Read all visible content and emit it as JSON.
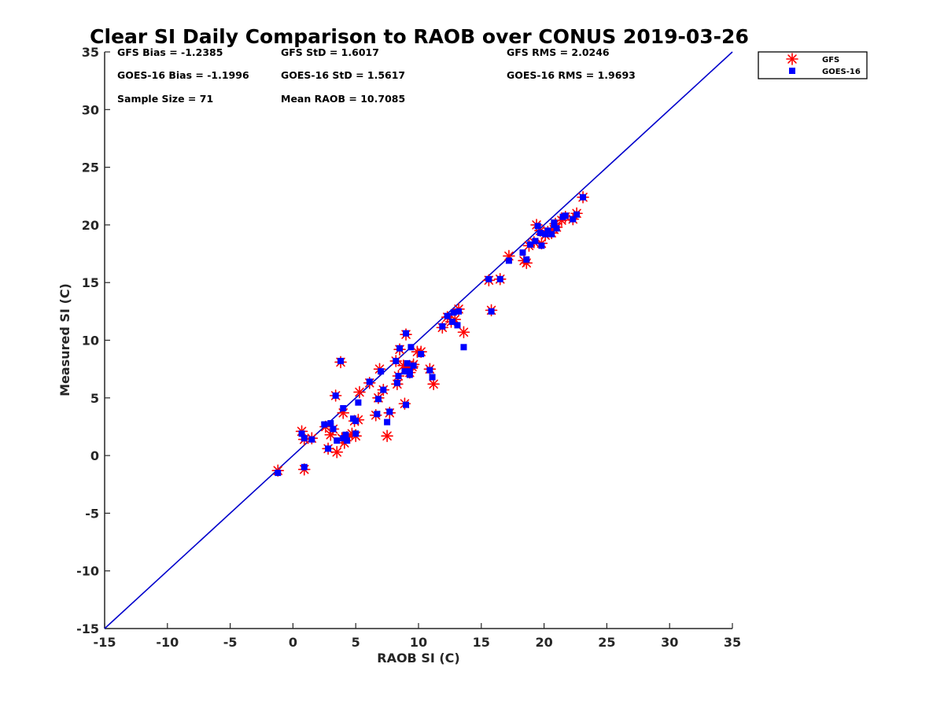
{
  "chart_data": {
    "type": "scatter",
    "title": "Clear SI Daily Comparison to RAOB over CONUS 2019-03-26",
    "xlabel": "RAOB SI (C)",
    "ylabel": "Measured SI (C)",
    "xlim": [
      -15,
      35
    ],
    "ylim": [
      -15,
      35
    ],
    "xticks": [
      -15,
      -10,
      -5,
      0,
      5,
      10,
      15,
      20,
      25,
      30,
      35
    ],
    "yticks": [
      -15,
      -10,
      -5,
      0,
      5,
      10,
      15,
      20,
      25,
      30,
      35
    ],
    "grid": false,
    "legend_position": "outside-top-right",
    "reference_line": {
      "x": [
        -15,
        35
      ],
      "y": [
        -15,
        35
      ],
      "color": "#0000cc"
    },
    "stats": [
      {
        "text": "GFS Bias = -1.2385"
      },
      {
        "text": "GFS StD = 1.6017"
      },
      {
        "text": "GFS RMS = 2.0246"
      },
      {
        "text": "GOES-16 Bias = -1.1996"
      },
      {
        "text": "GOES-16 StD = 1.5617"
      },
      {
        "text": "GOES-16 RMS = 1.9693"
      },
      {
        "text": "Sample Size = 71"
      },
      {
        "text": "Mean RAOB = 10.7085"
      }
    ],
    "series": [
      {
        "name": "GFS",
        "marker": "asterisk",
        "color": "#ff0000",
        "points": [
          [
            -1.2,
            -1.3
          ],
          [
            0.7,
            2.1
          ],
          [
            0.9,
            1.4
          ],
          [
            0.9,
            -1.2
          ],
          [
            1.5,
            1.5
          ],
          [
            2.6,
            2.5
          ],
          [
            2.8,
            0.6
          ],
          [
            3.0,
            1.8
          ],
          [
            3.2,
            2.3
          ],
          [
            3.4,
            5.2
          ],
          [
            3.5,
            0.3
          ],
          [
            3.8,
            8.1
          ],
          [
            3.9,
            1.5
          ],
          [
            4.0,
            3.7
          ],
          [
            4.1,
            1.1
          ],
          [
            4.3,
            1.6
          ],
          [
            4.7,
            1.9
          ],
          [
            4.9,
            3.0
          ],
          [
            5.0,
            1.7
          ],
          [
            5.3,
            5.5
          ],
          [
            6.1,
            6.3
          ],
          [
            6.6,
            3.5
          ],
          [
            6.8,
            5.0
          ],
          [
            6.9,
            7.5
          ],
          [
            7.2,
            5.7
          ],
          [
            7.5,
            1.7
          ],
          [
            7.7,
            3.7
          ],
          [
            8.2,
            8.2
          ],
          [
            8.3,
            6.2
          ],
          [
            8.4,
            6.9
          ],
          [
            8.5,
            9.2
          ],
          [
            8.8,
            7.8
          ],
          [
            8.9,
            4.5
          ],
          [
            9.0,
            10.5
          ],
          [
            9.1,
            7.6
          ],
          [
            9.3,
            7.2
          ],
          [
            9.5,
            7.7
          ],
          [
            9.9,
            9.0
          ],
          [
            10.2,
            9.0
          ],
          [
            10.9,
            7.5
          ],
          [
            11.2,
            6.2
          ],
          [
            11.9,
            11.1
          ],
          [
            12.3,
            12.0
          ],
          [
            12.9,
            11.8
          ],
          [
            13.2,
            12.7
          ],
          [
            13.6,
            10.7
          ],
          [
            15.6,
            15.2
          ],
          [
            15.8,
            12.6
          ],
          [
            16.5,
            15.3
          ],
          [
            17.2,
            17.3
          ],
          [
            18.4,
            16.9
          ],
          [
            18.6,
            16.7
          ],
          [
            18.8,
            18.2
          ],
          [
            19.2,
            18.5
          ],
          [
            19.4,
            20.0
          ],
          [
            19.7,
            19.5
          ],
          [
            19.8,
            18.4
          ],
          [
            20.1,
            19.1
          ],
          [
            20.3,
            19.4
          ],
          [
            20.6,
            19.3
          ],
          [
            20.8,
            19.6
          ],
          [
            21.0,
            19.8
          ],
          [
            21.4,
            20.4
          ],
          [
            21.7,
            20.7
          ],
          [
            22.3,
            20.5
          ],
          [
            22.6,
            21.0
          ],
          [
            23.1,
            22.4
          ],
          [
            20.9,
            20.1
          ],
          [
            5.2,
            3.1
          ],
          [
            9.6,
            7.9
          ],
          [
            12.6,
            11.6
          ]
        ]
      },
      {
        "name": "GOES-16",
        "marker": "square",
        "color": "#0000ff",
        "points": [
          [
            -1.2,
            -1.5
          ],
          [
            0.7,
            1.9
          ],
          [
            0.9,
            1.5
          ],
          [
            0.9,
            -1.0
          ],
          [
            1.5,
            1.4
          ],
          [
            2.5,
            2.7
          ],
          [
            2.8,
            0.6
          ],
          [
            3.0,
            2.8
          ],
          [
            3.2,
            2.3
          ],
          [
            3.4,
            5.2
          ],
          [
            3.5,
            1.3
          ],
          [
            3.8,
            8.2
          ],
          [
            4.0,
            4.1
          ],
          [
            4.0,
            1.5
          ],
          [
            4.2,
            1.8
          ],
          [
            4.3,
            1.3
          ],
          [
            4.8,
            3.2
          ],
          [
            5.0,
            1.9
          ],
          [
            5.2,
            4.6
          ],
          [
            6.1,
            6.4
          ],
          [
            6.7,
            3.6
          ],
          [
            6.8,
            4.9
          ],
          [
            7.0,
            7.3
          ],
          [
            7.2,
            5.7
          ],
          [
            7.5,
            2.9
          ],
          [
            7.7,
            3.8
          ],
          [
            8.2,
            8.2
          ],
          [
            8.3,
            6.3
          ],
          [
            8.4,
            6.9
          ],
          [
            8.5,
            9.3
          ],
          [
            8.9,
            7.3
          ],
          [
            9.0,
            4.4
          ],
          [
            9.0,
            10.6
          ],
          [
            9.1,
            8.0
          ],
          [
            9.3,
            7.0
          ],
          [
            9.3,
            7.3
          ],
          [
            9.4,
            9.4
          ],
          [
            10.2,
            8.8
          ],
          [
            10.9,
            7.4
          ],
          [
            11.1,
            6.8
          ],
          [
            11.9,
            11.2
          ],
          [
            12.3,
            12.1
          ],
          [
            12.8,
            12.4
          ],
          [
            13.1,
            11.3
          ],
          [
            13.2,
            12.5
          ],
          [
            13.6,
            9.4
          ],
          [
            15.6,
            15.3
          ],
          [
            15.8,
            12.5
          ],
          [
            16.5,
            15.3
          ],
          [
            17.2,
            16.9
          ],
          [
            18.3,
            17.6
          ],
          [
            18.6,
            17.0
          ],
          [
            18.9,
            18.3
          ],
          [
            19.3,
            18.6
          ],
          [
            19.5,
            19.9
          ],
          [
            19.7,
            19.3
          ],
          [
            19.8,
            18.2
          ],
          [
            20.1,
            19.2
          ],
          [
            20.3,
            19.5
          ],
          [
            20.6,
            19.2
          ],
          [
            20.8,
            20.0
          ],
          [
            21.0,
            19.7
          ],
          [
            21.5,
            20.7
          ],
          [
            21.7,
            20.8
          ],
          [
            22.3,
            20.5
          ],
          [
            22.6,
            20.9
          ],
          [
            23.1,
            22.4
          ],
          [
            20.8,
            20.2
          ],
          [
            5.0,
            3.0
          ],
          [
            9.6,
            7.8
          ],
          [
            12.7,
            11.6
          ]
        ]
      }
    ]
  }
}
